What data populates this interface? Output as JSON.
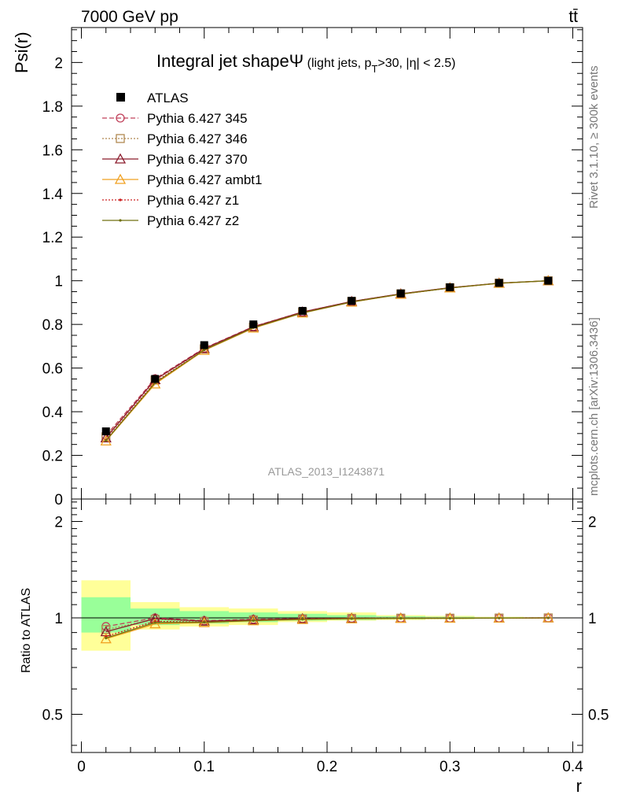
{
  "header": {
    "energy_label": "7000 GeV pp",
    "process_label": "tt̄"
  },
  "side": {
    "rivet_label": "Rivet 3.1.10, ≥ 300k events",
    "mcplots_label": "mcplots.cern.ch [arXiv:1306.3436]"
  },
  "chart_data": [
    {
      "type": "line",
      "panel": "main",
      "title": "Integral jet shapeΨ",
      "title_suffix": " (light jets, p",
      "title_sub": "T",
      "title_tail": ">30, |η| < 2.5)",
      "ylabel": "Psi(r)",
      "xlabel": "r",
      "watermark": "ATLAS_2013_I1243871",
      "xlim": [
        -0.008,
        0.408
      ],
      "ylim": [
        0,
        2.16
      ],
      "yticks": [
        0,
        0.2,
        0.4,
        0.6,
        0.8,
        1,
        1.2,
        1.4,
        1.6,
        1.8,
        2
      ],
      "ytick_labels": [
        "0",
        "0.2",
        "0.4",
        "0.6",
        "0.8",
        "1",
        "1.2",
        "1.4",
        "1.6",
        "1.8",
        "2"
      ],
      "x": [
        0.02,
        0.06,
        0.1,
        0.14,
        0.18,
        0.22,
        0.26,
        0.3,
        0.34,
        0.38
      ],
      "data": {
        "name": "ATLAS",
        "values": [
          0.31,
          0.55,
          0.705,
          0.8,
          0.862,
          0.908,
          0.942,
          0.97,
          0.99,
          1.0
        ]
      },
      "series": [
        {
          "name": "Pythia 6.427 345",
          "color": "#c0405a",
          "dash": "6,3",
          "marker": "circle",
          "values": [
            0.291,
            0.551,
            0.691,
            0.79,
            0.857,
            0.905,
            0.94,
            0.968,
            0.989,
            1.0
          ]
        },
        {
          "name": "Pythia 6.427 346",
          "color": "#b08850",
          "dash": "2,2",
          "marker": "square",
          "values": [
            0.285,
            0.545,
            0.688,
            0.788,
            0.856,
            0.905,
            0.94,
            0.968,
            0.989,
            1.0
          ]
        },
        {
          "name": "Pythia 6.427 370",
          "color": "#8b1a2b",
          "dash": "",
          "marker": "triangle",
          "values": [
            0.28,
            0.547,
            0.689,
            0.789,
            0.857,
            0.905,
            0.94,
            0.968,
            0.989,
            1.0
          ]
        },
        {
          "name": "Pythia 6.427 ambt1",
          "color": "#f0a020",
          "dash": "",
          "marker": "triangle",
          "values": [
            0.266,
            0.527,
            0.681,
            0.783,
            0.852,
            0.902,
            0.938,
            0.967,
            0.988,
            1.0
          ]
        },
        {
          "name": "Pythia 6.427 z1",
          "color": "#cc2020",
          "dash": "2,2",
          "marker": "dot",
          "values": [
            0.271,
            0.537,
            0.684,
            0.786,
            0.854,
            0.903,
            0.939,
            0.967,
            0.989,
            1.0
          ]
        },
        {
          "name": "Pythia 6.427 z2",
          "color": "#707010",
          "dash": "",
          "marker": "dot",
          "values": [
            0.268,
            0.532,
            0.683,
            0.785,
            0.853,
            0.903,
            0.939,
            0.967,
            0.989,
            1.0
          ]
        }
      ]
    },
    {
      "type": "line",
      "panel": "ratio",
      "ylabel": "Ratio to ATLAS",
      "xlabel": "r",
      "scale": "log",
      "ylim": [
        0.38,
        2.35
      ],
      "yticks": [
        0.5,
        1,
        2
      ],
      "ytick_labels": [
        "0.5",
        "1",
        "2"
      ],
      "xticks": [
        0,
        0.1,
        0.2,
        0.3,
        0.4
      ],
      "xtick_labels": [
        "0",
        "0.1",
        "0.2",
        "0.3",
        "0.4"
      ],
      "x_edges": [
        0,
        0.04,
        0.08,
        0.12,
        0.16,
        0.2,
        0.24,
        0.28,
        0.32,
        0.36,
        0.4
      ],
      "band_yellow": [
        [
          0.79,
          1.31
        ],
        [
          0.92,
          1.12
        ],
        [
          0.94,
          1.08
        ],
        [
          0.95,
          1.07
        ],
        [
          0.97,
          1.05
        ],
        [
          0.98,
          1.04
        ],
        [
          0.985,
          1.02
        ],
        [
          0.99,
          1.015
        ],
        [
          0.995,
          1.008
        ],
        [
          0.998,
          1.003
        ]
      ],
      "band_green": [
        [
          0.9,
          1.16
        ],
        [
          0.95,
          1.07
        ],
        [
          0.96,
          1.05
        ],
        [
          0.97,
          1.04
        ],
        [
          0.98,
          1.03
        ],
        [
          0.985,
          1.02
        ],
        [
          0.99,
          1.012
        ],
        [
          0.993,
          1.008
        ],
        [
          0.997,
          1.004
        ],
        [
          0.999,
          1.001
        ]
      ],
      "x": [
        0.02,
        0.06,
        0.1,
        0.14,
        0.18,
        0.22,
        0.26,
        0.3,
        0.34,
        0.38
      ],
      "series": [
        {
          "name": "Pythia 6.427 345",
          "values": [
            0.94,
            1.0,
            0.98,
            0.99,
            0.995,
            0.997,
            0.998,
            0.998,
            0.999,
            1.0
          ]
        },
        {
          "name": "Pythia 6.427 346",
          "values": [
            0.92,
            0.99,
            0.975,
            0.985,
            0.993,
            0.997,
            0.998,
            0.998,
            0.999,
            1.0
          ]
        },
        {
          "name": "Pythia 6.427 370",
          "values": [
            0.905,
            0.995,
            0.977,
            0.986,
            0.994,
            0.997,
            0.998,
            0.998,
            0.999,
            1.0
          ]
        },
        {
          "name": "Pythia 6.427 ambt1",
          "values": [
            0.86,
            0.958,
            0.966,
            0.979,
            0.988,
            0.993,
            0.996,
            0.997,
            0.998,
            1.0
          ]
        },
        {
          "name": "Pythia 6.427 z1",
          "values": [
            0.875,
            0.976,
            0.97,
            0.982,
            0.991,
            0.995,
            0.997,
            0.997,
            0.999,
            1.0
          ]
        },
        {
          "name": "Pythia 6.427 z2",
          "values": [
            0.865,
            0.967,
            0.969,
            0.981,
            0.99,
            0.995,
            0.997,
            0.997,
            0.999,
            1.0
          ]
        }
      ]
    }
  ]
}
